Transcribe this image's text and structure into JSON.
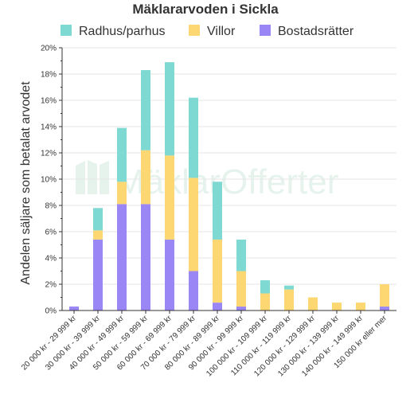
{
  "chart_data": {
    "type": "bar",
    "stacked": true,
    "title": "Mäklararvoden i Sickla",
    "ylabel": "Andelen säljare som betalat arvodet",
    "xlabel": "",
    "ylim": [
      0,
      20
    ],
    "y_ticks": [
      "0%",
      "2%",
      "4%",
      "6%",
      "8%",
      "10%",
      "12%",
      "14%",
      "16%",
      "18%",
      "20%"
    ],
    "grid": true,
    "legend_position": "top",
    "categories": [
      "20 000 kr - 29 999 kr",
      "30 000 kr - 39 999 kr",
      "40 000 kr - 49 999 kr",
      "50 000 kr - 59 999 kr",
      "60 000 kr - 69 999 kr",
      "70 000 kr - 79 999 kr",
      "80 000 kr - 89 999 kr",
      "90 000 kr - 99 999 kr",
      "100 000 kr - 109 999 kr",
      "110 000 kr - 119 999 kr",
      "120 000 kr - 129 999 kr",
      "130 000 kr - 139 999 kr",
      "140 000 kr - 149 999 kr",
      "150 000 kr eller mer"
    ],
    "series": [
      {
        "name": "Bostadsrätter",
        "color": "#9b86f6",
        "values": [
          0.3,
          5.4,
          8.1,
          8.1,
          5.4,
          3.0,
          0.6,
          0.3,
          0,
          0,
          0,
          0,
          0,
          0.3
        ]
      },
      {
        "name": "Villor",
        "color": "#fdd872",
        "values": [
          0,
          0.7,
          1.7,
          4.1,
          6.4,
          7.1,
          4.8,
          2.7,
          1.3,
          1.6,
          1.0,
          0.6,
          0.6,
          1.7
        ]
      },
      {
        "name": "Radhus/parhus",
        "color": "#7dd9d1",
        "values": [
          0,
          1.7,
          4.1,
          6.1,
          7.1,
          6.1,
          4.4,
          2.4,
          1.0,
          0.3,
          0,
          0,
          0,
          0
        ]
      }
    ],
    "legend_order": [
      "Radhus/parhus",
      "Villor",
      "Bostadsrätter"
    ]
  },
  "watermark": {
    "text": "MäklarOfferter",
    "color": "#e6f3ec"
  },
  "colors": {
    "axis": "#333333",
    "grid": "#e6e6e6",
    "text": "#333333"
  }
}
